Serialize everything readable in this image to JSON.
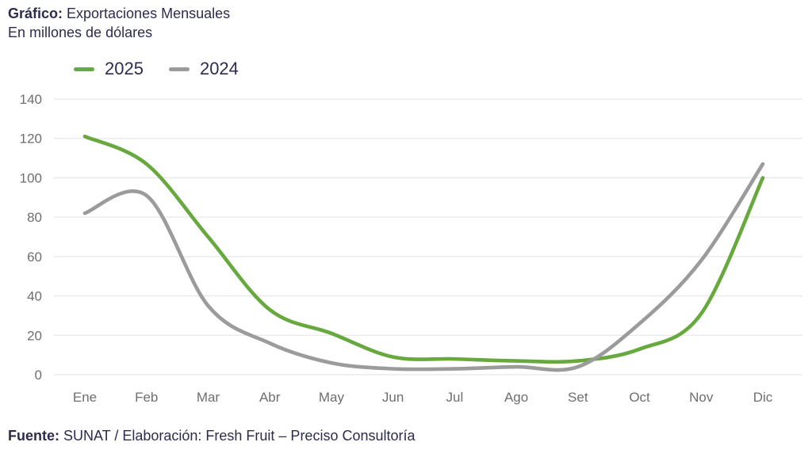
{
  "header": {
    "title_bold": "Gráfico:",
    "title_rest": "Exportaciones Mensuales",
    "subtitle": "En millones de dólares"
  },
  "chart_data": {
    "type": "line",
    "title": "Gráfico: Exportaciones Mensuales",
    "subtitle": "En millones de dólares",
    "categories": [
      "Ene",
      "Feb",
      "Mar",
      "Abr",
      "May",
      "Jun",
      "Jul",
      "Ago",
      "Set",
      "Oct",
      "Nov",
      "Dic"
    ],
    "series": [
      {
        "name": "2025",
        "color": "#68a93f",
        "values": [
          121,
          107,
          70,
          33,
          21,
          9,
          8,
          7,
          7,
          13,
          31,
          100
        ]
      },
      {
        "name": "2024",
        "color": "#9b9b9b",
        "values": [
          82,
          91,
          35,
          16,
          6,
          3,
          3,
          4,
          4,
          26,
          58,
          107
        ]
      }
    ],
    "ylim": [
      0,
      140
    ],
    "yticks": [
      0,
      20,
      40,
      60,
      80,
      100,
      120,
      140
    ],
    "grid": true,
    "legend_position": "top-left",
    "xlabel": "",
    "ylabel": ""
  },
  "footer": {
    "label_bold": "Fuente:",
    "text": "SUNAT / Elaboración: Fresh Fruit – Preciso Consultoría"
  },
  "colors": {
    "text_navy": "#2d2b4e",
    "tick_label": "#6e6e6e",
    "gridline": "#e8e8e8",
    "series_2025": "#68a93f",
    "series_2024": "#9b9b9b",
    "background": "#ffffff"
  }
}
